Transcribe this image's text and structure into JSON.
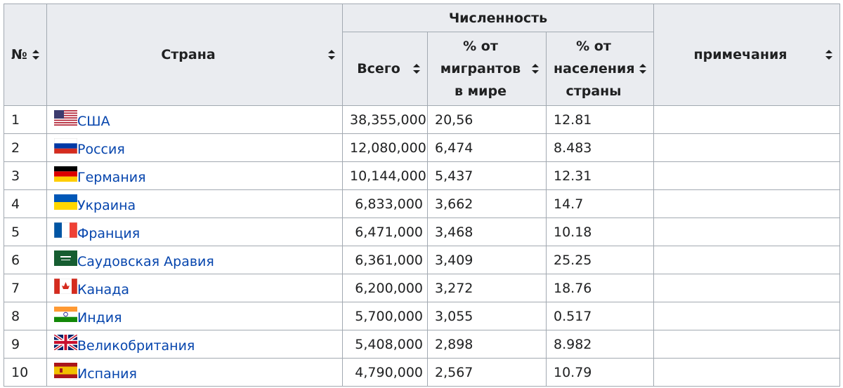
{
  "header": {
    "rank": "№",
    "country": "Страна",
    "group": "Численность",
    "total": "Всего",
    "pct_migrants": "% от мигрантов в мире",
    "pct_population": "% от населения страны",
    "notes": "примечания"
  },
  "rows": [
    [
      "1",
      "США",
      "38,355,000",
      "20,56",
      "12.81"
    ],
    [
      "2",
      "Россия",
      "12,080,000",
      "6,474",
      "8.483"
    ],
    [
      "3",
      "Германия",
      "10,144,000",
      "5,437",
      "12.31"
    ],
    [
      "4",
      "Украина",
      "6,833,000",
      "3,662",
      "14.7"
    ],
    [
      "5",
      "Франция",
      "6,471,000",
      "3,468",
      "10.18"
    ],
    [
      "6",
      "Саудовская Аравия",
      "6,361,000",
      "3,409",
      "25.25"
    ],
    [
      "7",
      "Канада",
      "6,200,000",
      "3,272",
      "18.76"
    ],
    [
      "8",
      "Индия",
      "5,700,000",
      "3,055",
      "0.517"
    ],
    [
      "9",
      "Великобритания",
      "5,408,000",
      "2,898",
      "8.982"
    ],
    [
      "10",
      "Испания",
      "4,790,000",
      "2,567",
      "10.79"
    ]
  ]
}
